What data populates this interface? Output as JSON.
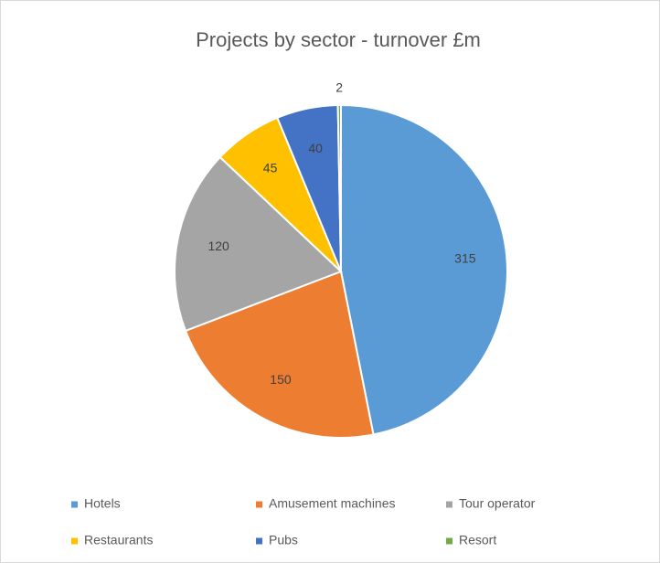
{
  "chart_data": {
    "type": "pie",
    "title": "Projects by sector - turnover £m",
    "categories": [
      "Hotels",
      "Amusement machines",
      "Tour operator",
      "Restaurants",
      "Pubs",
      "Resort"
    ],
    "values": [
      315,
      150,
      120,
      45,
      40,
      2
    ],
    "colors": [
      "#5b9bd5",
      "#ed7d31",
      "#a5a5a5",
      "#ffc000",
      "#4472c4",
      "#70ad47"
    ],
    "legend": "bottom"
  }
}
